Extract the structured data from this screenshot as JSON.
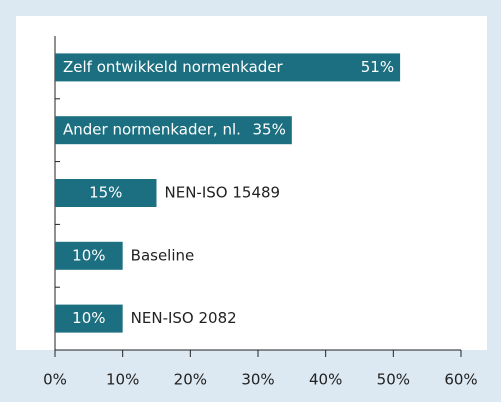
{
  "chart_data": {
    "type": "bar",
    "orientation": "horizontal",
    "categories": [
      "Zelf ontwikkeld normenkader",
      "Ander normenkader, nl.",
      "NEN-ISO 15489",
      "Baseline",
      "NEN-ISO 2082"
    ],
    "values": [
      51,
      35,
      15,
      10,
      10
    ],
    "value_labels": [
      "51%",
      "35%",
      "15%",
      "10%",
      "10%"
    ],
    "color": "#1b6f80",
    "xlim": [
      0,
      60
    ],
    "xticks": [
      {
        "value": 0,
        "label": "0%"
      },
      {
        "value": 10,
        "label": "10%"
      },
      {
        "value": 20,
        "label": "20%"
      },
      {
        "value": 30,
        "label": "30%"
      },
      {
        "value": 40,
        "label": "40%"
      },
      {
        "value": 50,
        "label": "50%"
      },
      {
        "value": 60,
        "label": "60%"
      }
    ],
    "grid": false
  }
}
